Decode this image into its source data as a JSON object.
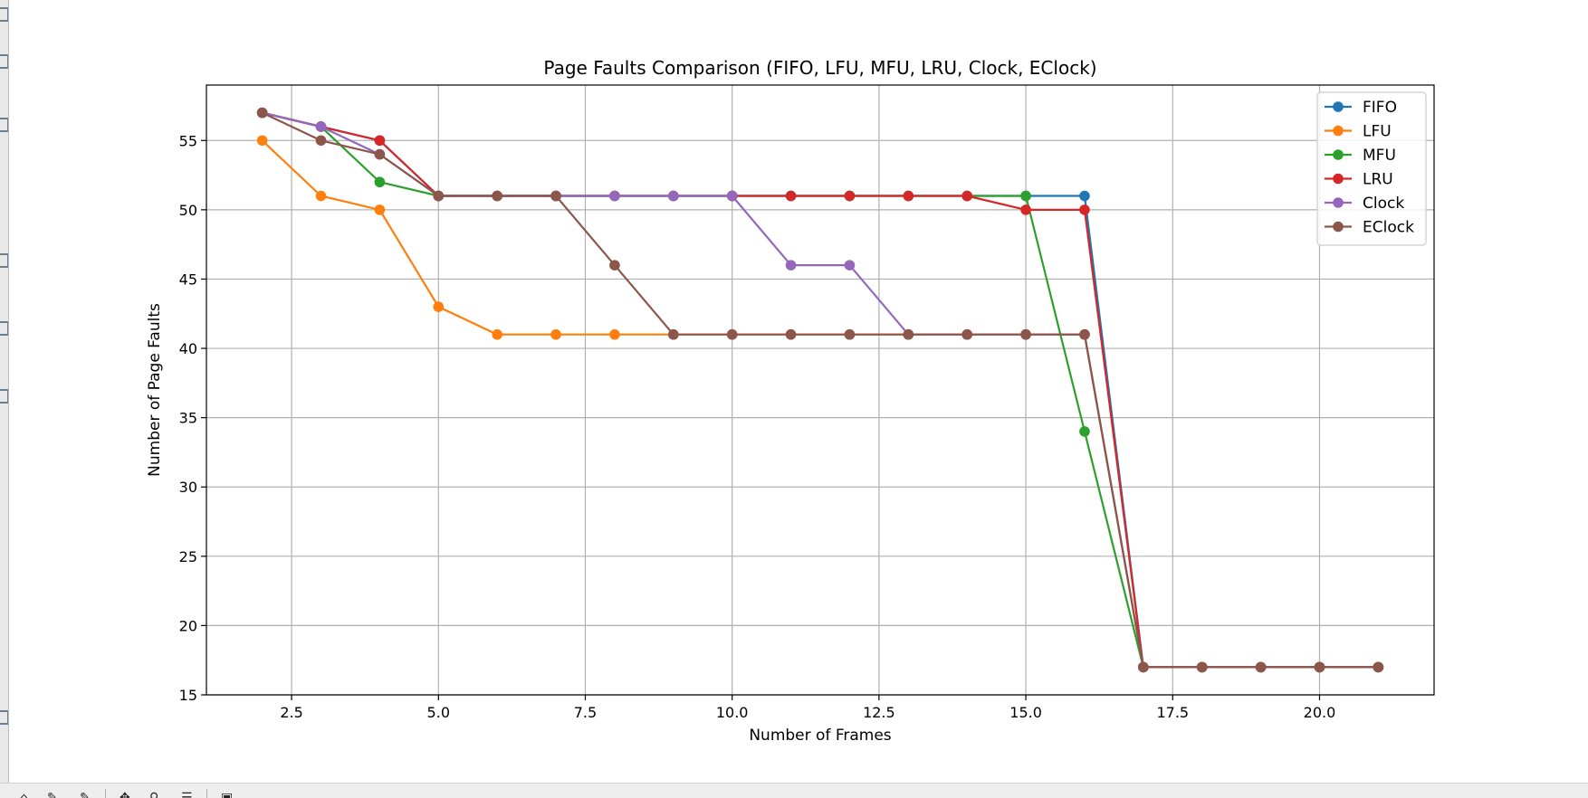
{
  "toolbar": {
    "coordinate_readout": "",
    "icons": [
      "home-icon",
      "back-icon",
      "forward-icon",
      "pan-icon",
      "zoom-icon",
      "configure-icon",
      "save-icon"
    ]
  },
  "chart_data": {
    "type": "line",
    "title": "Page Faults Comparison (FIFO, LFU, MFU, LRU, Clock, EClock)",
    "xlabel": "Number of Frames",
    "ylabel": "Number of Page Faults",
    "xlim": [
      1.05,
      21.95
    ],
    "ylim": [
      15,
      59
    ],
    "x_ticks": [
      2.5,
      5.0,
      7.5,
      10.0,
      12.5,
      15.0,
      17.5,
      20.0
    ],
    "x_tick_labels": [
      "2.5",
      "5.0",
      "7.5",
      "10.0",
      "12.5",
      "15.0",
      "17.5",
      "20.0"
    ],
    "y_ticks": [
      15,
      20,
      25,
      30,
      35,
      40,
      45,
      50,
      55
    ],
    "y_tick_labels": [
      "15",
      "20",
      "25",
      "30",
      "35",
      "40",
      "45",
      "50",
      "55"
    ],
    "grid": true,
    "legend_position": "top-right",
    "x": [
      2,
      3,
      4,
      5,
      6,
      7,
      8,
      9,
      10,
      11,
      12,
      13,
      14,
      15,
      16,
      17,
      18,
      19,
      20,
      21
    ],
    "series": [
      {
        "name": "FIFO",
        "color": "#1f77b4",
        "values": [
          57,
          56,
          55,
          51,
          51,
          51,
          51,
          51,
          51,
          51,
          51,
          51,
          51,
          51,
          51,
          17,
          17,
          17,
          17,
          17
        ]
      },
      {
        "name": "LFU",
        "color": "#ff7f0e",
        "values": [
          55,
          51,
          50,
          43,
          41,
          41,
          41,
          41,
          41,
          41,
          41,
          41,
          41,
          41,
          41,
          17,
          17,
          17,
          17,
          17
        ]
      },
      {
        "name": "MFU",
        "color": "#2ca02c",
        "values": [
          57,
          56,
          52,
          51,
          51,
          51,
          51,
          51,
          51,
          51,
          51,
          51,
          51,
          51,
          34,
          17,
          17,
          17,
          17,
          17
        ]
      },
      {
        "name": "LRU",
        "color": "#d62728",
        "values": [
          57,
          56,
          55,
          51,
          51,
          51,
          51,
          51,
          51,
          51,
          51,
          51,
          51,
          50,
          50,
          17,
          17,
          17,
          17,
          17
        ]
      },
      {
        "name": "Clock",
        "color": "#9467bd",
        "values": [
          57,
          56,
          54,
          51,
          51,
          51,
          51,
          51,
          51,
          46,
          46,
          41,
          41,
          41,
          41,
          17,
          17,
          17,
          17,
          17
        ]
      },
      {
        "name": "EClock",
        "color": "#8c564b",
        "values": [
          57,
          55,
          54,
          51,
          51,
          51,
          46,
          41,
          41,
          41,
          41,
          41,
          41,
          41,
          41,
          17,
          17,
          17,
          17,
          17
        ]
      }
    ]
  }
}
